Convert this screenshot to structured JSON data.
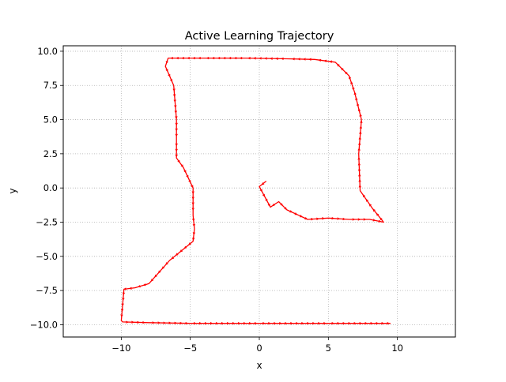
{
  "chart_data": {
    "type": "line",
    "title": "Active Learning Trajectory",
    "xlabel": "x",
    "ylabel": "y",
    "xlim": [
      -14.2,
      14.2
    ],
    "ylim": [
      -10.9,
      10.4
    ],
    "xticks": [
      -10,
      -5,
      0,
      5,
      10
    ],
    "xtick_labels": [
      "−10",
      "−5",
      "0",
      "5",
      "10"
    ],
    "yticks": [
      -10.0,
      -7.5,
      -5.0,
      -2.5,
      0.0,
      2.5,
      5.0,
      7.5,
      10.0
    ],
    "ytick_labels": [
      "−10.0",
      "−7.5",
      "−5.0",
      "−2.5",
      "0.0",
      "2.5",
      "5.0",
      "7.5",
      "10.0"
    ],
    "grid": true,
    "grid_style": "dotted",
    "series": [
      {
        "color": "#ff0000",
        "style": "quiver-arrows",
        "x": [
          0.5,
          0.0,
          0.8,
          1.4,
          2.0,
          3.5,
          5.0,
          6.5,
          8.0,
          9.0,
          8.2,
          7.3,
          7.2,
          7.4,
          7.1,
          6.9,
          6.5,
          5.5,
          4.0,
          2.0,
          -1.0,
          -4.0,
          -6.6,
          -6.8,
          -6.2,
          -6.0,
          -6.0,
          -6.0,
          -5.5,
          -4.8,
          -4.8,
          -4.7,
          -4.8,
          -6.5,
          -8.0,
          -9.0,
          -9.8,
          -10.0,
          -9.9,
          -8.0,
          -5.0,
          0.0,
          5.0,
          9.5
        ],
        "y": [
          0.5,
          0.1,
          -1.4,
          -1.0,
          -1.6,
          -2.3,
          -2.2,
          -2.3,
          -2.3,
          -2.5,
          -1.5,
          -0.2,
          2.5,
          5.0,
          6.2,
          7.0,
          8.2,
          9.2,
          9.4,
          9.45,
          9.5,
          9.5,
          9.5,
          8.9,
          7.5,
          5.0,
          3.5,
          2.2,
          1.5,
          0.0,
          -2.0,
          -3.0,
          -3.9,
          -5.3,
          -7.0,
          -7.3,
          -7.4,
          -9.7,
          -9.8,
          -9.85,
          -9.9,
          -9.9,
          -9.9,
          -9.9
        ]
      }
    ]
  }
}
